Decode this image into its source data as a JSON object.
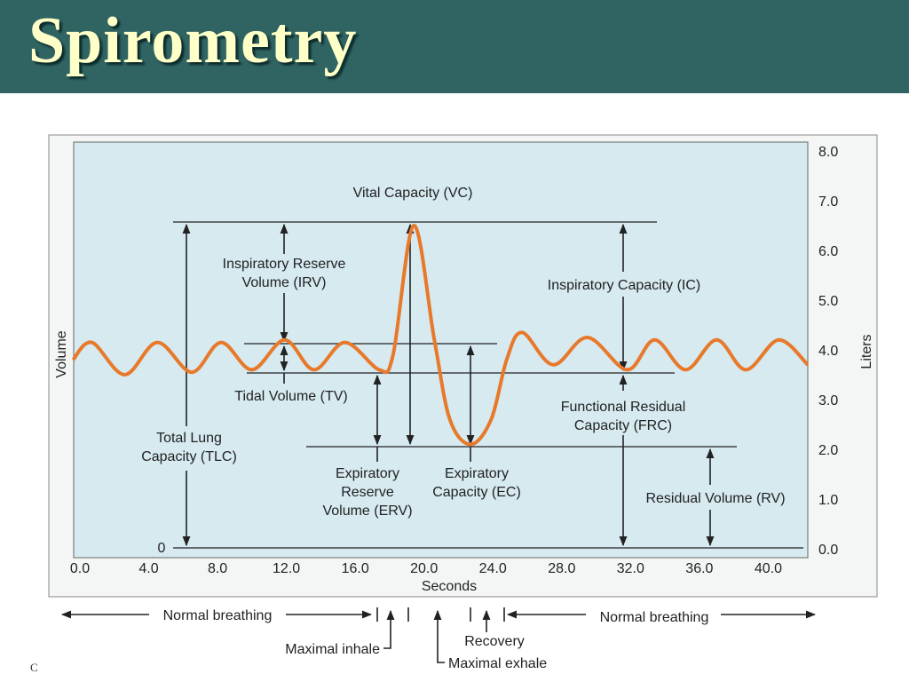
{
  "header": {
    "title": "Spirometry"
  },
  "footer": "C",
  "chart_data": {
    "type": "line",
    "xlabel": "Seconds",
    "ylabel": "Volume",
    "y_unit_label": "Liters",
    "x": [
      -0.4,
      0.7,
      2.6,
      4.5,
      6.5,
      8.2,
      10.0,
      11.9,
      13.6,
      15.4,
      17.4,
      18.2,
      19.4,
      20.6,
      21.5,
      22.7,
      23.9,
      24.8,
      25.7,
      27.5,
      29.5,
      31.8,
      33.4,
      35.2,
      37.0,
      38.7,
      40.6,
      42.3
    ],
    "values": [
      3.8,
      4.15,
      3.5,
      4.15,
      3.55,
      4.15,
      3.6,
      4.2,
      3.6,
      4.15,
      3.6,
      3.9,
      6.5,
      4.2,
      2.6,
      2.1,
      2.6,
      3.8,
      4.35,
      3.7,
      4.25,
      3.6,
      4.2,
      3.6,
      4.2,
      3.6,
      4.2,
      3.7
    ],
    "color": "#e8792b",
    "xlim": [
      -0.36,
      42.3
    ],
    "ylim": [
      -0.18,
      8.18
    ],
    "grid": false,
    "xticks": [
      {
        "value": 0,
        "label": "0.0"
      },
      {
        "value": 4,
        "label": "4.0"
      },
      {
        "value": 8,
        "label": "8.0"
      },
      {
        "value": 12,
        "label": "12.0"
      },
      {
        "value": 16,
        "label": "16.0"
      },
      {
        "value": 20,
        "label": "20.0"
      },
      {
        "value": 24,
        "label": "24.0"
      },
      {
        "value": 28,
        "label": "28.0"
      },
      {
        "value": 32,
        "label": "32.0"
      },
      {
        "value": 36,
        "label": "36.0"
      },
      {
        "value": 40,
        "label": "40.0"
      }
    ],
    "yticks": [
      {
        "value": 0,
        "label": "0.0"
      },
      {
        "value": 1,
        "label": "1.0"
      },
      {
        "value": 2,
        "label": "2.0"
      },
      {
        "value": 3,
        "label": "3.0"
      },
      {
        "value": 4,
        "label": "4.0"
      },
      {
        "value": 5,
        "label": "5.0"
      },
      {
        "value": 6,
        "label": "6.0"
      },
      {
        "value": 7,
        "label": "7.0"
      },
      {
        "value": 8,
        "label": "8.0"
      }
    ],
    "annotations": [
      [
        "Vital Capacity (VC)"
      ],
      [
        "Inspiratory Reserve",
        "Volume (IRV)"
      ],
      [
        "Inspiratory Capacity (IC)"
      ],
      [
        "Tidal Volume (TV)"
      ],
      [
        "Functional Residual",
        "Capacity (FRC)"
      ],
      [
        "Total Lung",
        "Capacity (TLC)"
      ],
      [
        "Expiratory",
        "Reserve",
        "Volume (ERV)"
      ],
      [
        "Expiratory",
        "Capacity (EC)"
      ],
      [
        "Residual Volume (RV)"
      ],
      [
        "0"
      ]
    ],
    "timeline": [
      "Normal breathing",
      "Normal breathing",
      "Maximal inhale",
      "Recovery",
      "Maximal exhale"
    ]
  }
}
